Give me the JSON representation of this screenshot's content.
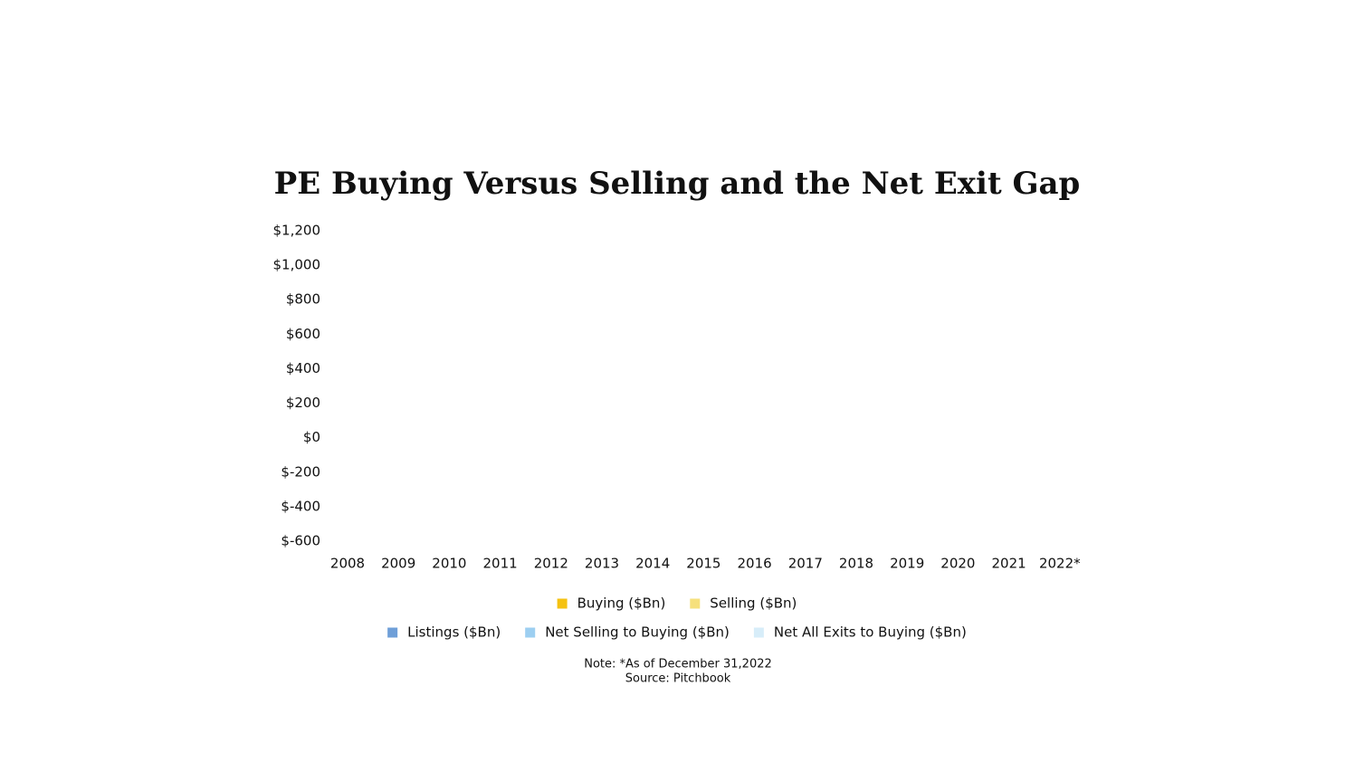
{
  "chart_data": {
    "type": "bar",
    "title": "PE Buying Versus Selling and the Net Exit Gap",
    "categories": [
      "2008",
      "2009",
      "2010",
      "2011",
      "2012",
      "2013",
      "2014",
      "2015",
      "2016",
      "2017",
      "2018",
      "2019",
      "2020",
      "2021",
      "2022*"
    ],
    "series": [
      {
        "name": "Buying ($Bn)",
        "color": "#f5c211",
        "values": [
          null,
          null,
          null,
          null,
          null,
          null,
          null,
          null,
          null,
          null,
          null,
          null,
          null,
          null,
          null
        ]
      },
      {
        "name": "Selling ($Bn)",
        "color": "#f6e07c",
        "values": [
          null,
          null,
          null,
          null,
          null,
          null,
          null,
          null,
          null,
          null,
          null,
          null,
          null,
          null,
          null
        ]
      },
      {
        "name": "Listings ($Bn)",
        "color": "#6f9fd8",
        "values": [
          null,
          null,
          null,
          null,
          null,
          null,
          null,
          null,
          null,
          null,
          null,
          null,
          null,
          null,
          null
        ]
      },
      {
        "name": "Net Selling to Buying ($Bn)",
        "color": "#9dcff1",
        "values": [
          null,
          null,
          null,
          null,
          null,
          null,
          null,
          null,
          null,
          null,
          null,
          null,
          null,
          null,
          null
        ]
      },
      {
        "name": "Net All Exits to Buying ($Bn)",
        "color": "#d7edf9",
        "values": [
          null,
          null,
          null,
          null,
          null,
          null,
          null,
          null,
          null,
          null,
          null,
          null,
          null,
          null,
          null
        ]
      }
    ],
    "ylim": [
      -600,
      1200
    ],
    "yticks": [
      {
        "value": -600,
        "label": "$-600"
      },
      {
        "value": -400,
        "label": "$-400"
      },
      {
        "value": -200,
        "label": "$-200"
      },
      {
        "value": 0,
        "label": "$0"
      },
      {
        "value": 200,
        "label": "$200"
      },
      {
        "value": 400,
        "label": "$400"
      },
      {
        "value": 600,
        "label": "$600"
      },
      {
        "value": 800,
        "label": "$800"
      },
      {
        "value": 1000,
        "label": "$1,000"
      },
      {
        "value": 1200,
        "label": "$1,200"
      }
    ],
    "grid": false,
    "note": "Note: *As of December 31,2022",
    "source": "Source: Pitchbook"
  }
}
